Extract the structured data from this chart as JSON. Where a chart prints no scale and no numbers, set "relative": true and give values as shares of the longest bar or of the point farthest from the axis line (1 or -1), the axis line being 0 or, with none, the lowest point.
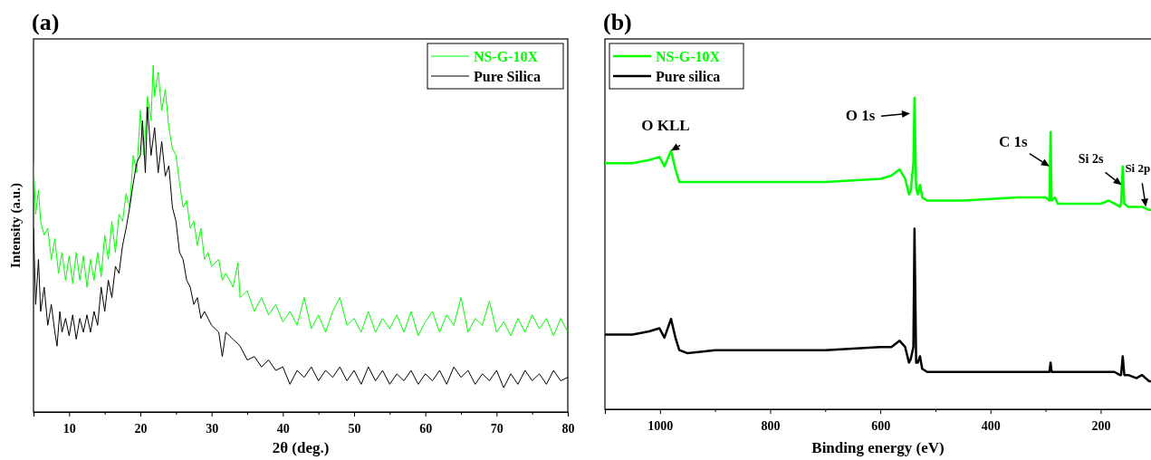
{
  "chart_data": [
    {
      "type": "line",
      "title": "(a)",
      "xlabel": "2θ (deg.)",
      "ylabel": "Intensity (a.u.)",
      "relative": true,
      "xlim": [
        5,
        80
      ],
      "xticks": [
        {
          "value": 5,
          "label": null
        },
        10,
        {
          "value": 15,
          "label": null
        },
        20,
        {
          "value": 25,
          "label": null
        },
        30,
        {
          "value": 35,
          "label": null
        },
        40,
        {
          "value": 45,
          "label": null
        },
        50,
        {
          "value": 55,
          "label": null
        },
        60,
        {
          "value": 65,
          "label": null
        },
        70,
        {
          "value": 75,
          "label": null
        },
        80
      ],
      "legend": "top right",
      "grid": false,
      "series": [
        {
          "name": "NS-G-10X",
          "color": "#00ff00",
          "x": [
            5,
            5.3,
            5.7,
            6,
            6.5,
            7,
            7.5,
            8,
            8.5,
            9,
            9.5,
            10,
            10.5,
            11,
            11.5,
            12,
            12.5,
            13,
            13.5,
            14,
            14.5,
            15,
            15.5,
            16,
            16.5,
            17,
            17.5,
            18,
            18.5,
            19,
            19.5,
            20,
            20.5,
            21,
            21.5,
            21.8,
            22,
            22.5,
            23,
            23.5,
            24,
            24.5,
            25,
            25.5,
            26,
            26.5,
            27,
            27.5,
            28,
            28.5,
            29,
            29.5,
            30,
            31,
            31.5,
            32,
            33,
            33.7,
            34,
            35,
            36,
            37,
            38,
            39,
            40,
            41,
            42,
            43,
            44,
            45,
            46,
            47,
            48,
            49,
            50,
            51,
            52,
            53,
            54,
            55,
            56,
            57,
            58,
            59,
            60,
            61,
            62,
            63,
            64,
            65,
            66,
            67,
            68,
            69,
            70,
            71,
            72,
            73,
            74,
            75,
            76,
            77,
            78,
            79,
            80
          ],
          "values": [
            0.72,
            0.57,
            0.64,
            0.55,
            0.51,
            0.53,
            0.44,
            0.5,
            0.4,
            0.46,
            0.38,
            0.45,
            0.37,
            0.46,
            0.38,
            0.45,
            0.36,
            0.44,
            0.38,
            0.46,
            0.39,
            0.51,
            0.44,
            0.55,
            0.46,
            0.57,
            0.55,
            0.63,
            0.59,
            0.74,
            0.69,
            0.87,
            0.74,
            0.91,
            0.84,
            1.0,
            0.91,
            0.98,
            0.87,
            0.93,
            0.82,
            0.76,
            0.74,
            0.66,
            0.59,
            0.61,
            0.53,
            0.55,
            0.48,
            0.53,
            0.44,
            0.46,
            0.42,
            0.44,
            0.38,
            0.4,
            0.36,
            0.43,
            0.33,
            0.35,
            0.29,
            0.33,
            0.28,
            0.31,
            0.26,
            0.29,
            0.25,
            0.33,
            0.24,
            0.28,
            0.23,
            0.29,
            0.33,
            0.25,
            0.27,
            0.23,
            0.29,
            0.23,
            0.27,
            0.24,
            0.28,
            0.23,
            0.29,
            0.22,
            0.26,
            0.29,
            0.23,
            0.28,
            0.25,
            0.33,
            0.23,
            0.27,
            0.25,
            0.32,
            0.23,
            0.26,
            0.22,
            0.27,
            0.23,
            0.28,
            0.24,
            0.27,
            0.22,
            0.27,
            0.23
          ]
        },
        {
          "name": "Pure Silica",
          "color": "#000000",
          "x": [
            5,
            5.3,
            5.7,
            6,
            6.5,
            7,
            7.5,
            8,
            8.3,
            8.7,
            9,
            9.5,
            10,
            10.5,
            11,
            11.5,
            12,
            12.5,
            13,
            13.5,
            14,
            14.5,
            15,
            15.5,
            16,
            16.5,
            17,
            17.5,
            18,
            18.5,
            19,
            19.5,
            20,
            20.3,
            20.7,
            21,
            21.5,
            22,
            22.5,
            23,
            23.5,
            24,
            24.5,
            25,
            25.5,
            26,
            26.5,
            27,
            27.5,
            28,
            28.5,
            29,
            30,
            31,
            31.5,
            32,
            33,
            34,
            35,
            36,
            37,
            38,
            39,
            40,
            41,
            42,
            43,
            44,
            45,
            46,
            47,
            48,
            49,
            50,
            51,
            52,
            53,
            54,
            55,
            56,
            57,
            58,
            59,
            60,
            61,
            62,
            63,
            64,
            65,
            66,
            67,
            68,
            69,
            70,
            71,
            72,
            73,
            74,
            75,
            76,
            77,
            78,
            79,
            80
          ],
          "values": [
            0.53,
            0.31,
            0.44,
            0.29,
            0.36,
            0.25,
            0.31,
            0.23,
            0.19,
            0.29,
            0.23,
            0.27,
            0.22,
            0.28,
            0.21,
            0.27,
            0.23,
            0.28,
            0.23,
            0.29,
            0.25,
            0.36,
            0.29,
            0.38,
            0.33,
            0.42,
            0.4,
            0.48,
            0.53,
            0.59,
            0.66,
            0.72,
            0.74,
            0.84,
            0.69,
            0.88,
            0.74,
            0.82,
            0.69,
            0.78,
            0.68,
            0.71,
            0.59,
            0.55,
            0.46,
            0.44,
            0.38,
            0.36,
            0.31,
            0.33,
            0.27,
            0.29,
            0.25,
            0.23,
            0.16,
            0.23,
            0.21,
            0.19,
            0.15,
            0.16,
            0.13,
            0.15,
            0.12,
            0.13,
            0.08,
            0.12,
            0.1,
            0.13,
            0.09,
            0.12,
            0.1,
            0.13,
            0.09,
            0.12,
            0.08,
            0.13,
            0.09,
            0.12,
            0.08,
            0.11,
            0.09,
            0.12,
            0.08,
            0.11,
            0.09,
            0.12,
            0.08,
            0.13,
            0.1,
            0.12,
            0.08,
            0.11,
            0.09,
            0.12,
            0.07,
            0.11,
            0.08,
            0.12,
            0.09,
            0.11,
            0.08,
            0.12,
            0.09,
            0.1
          ]
        }
      ]
    },
    {
      "type": "line",
      "title": "(b)",
      "xlabel": "Binding energy (eV)",
      "relative": true,
      "xlim": [
        1100,
        107
      ],
      "xticks": [
        {
          "value": 1100,
          "label": null
        },
        1000,
        {
          "value": 900,
          "label": null
        },
        800,
        {
          "value": 700,
          "label": null
        },
        600,
        {
          "value": 500,
          "label": null
        },
        400,
        {
          "value": 300,
          "label": null
        },
        200
      ],
      "legend": "top left",
      "grid": false,
      "annotations": [
        {
          "text": "O KLL",
          "x": 980,
          "y": 0.83
        },
        {
          "text": "O 1s",
          "x": 546,
          "y": 0.95
        },
        {
          "text": "C 1s",
          "x": 293,
          "y": 0.78
        },
        {
          "text": "Si 2s",
          "x": 162,
          "y": 0.72
        },
        {
          "text": "Si 2p",
          "x": 118,
          "y": 0.65
        }
      ],
      "series": [
        {
          "name": "NS-G-10X",
          "color": "#00ff00",
          "x": [
            1100,
            1050,
            1020,
            1001,
            992,
            980,
            972,
            965,
            950,
            900,
            800,
            700,
            600,
            580,
            565,
            555,
            548,
            545,
            540,
            538,
            535,
            532,
            528,
            524,
            515,
            450,
            350,
            310,
            300,
            293,
            291,
            289,
            283,
            278,
            250,
            200,
            185,
            175,
            165,
            163,
            160,
            157,
            150,
            135,
            125,
            112,
            107
          ],
          "values": [
            0.79,
            0.79,
            0.8,
            0.81,
            0.78,
            0.83,
            0.77,
            0.73,
            0.73,
            0.73,
            0.73,
            0.73,
            0.74,
            0.75,
            0.77,
            0.74,
            0.69,
            0.7,
            0.79,
            1.0,
            0.71,
            0.69,
            0.72,
            0.68,
            0.67,
            0.67,
            0.68,
            0.68,
            0.68,
            0.67,
            0.89,
            0.67,
            0.68,
            0.66,
            0.66,
            0.66,
            0.67,
            0.66,
            0.65,
            0.66,
            0.78,
            0.66,
            0.65,
            0.65,
            0.65,
            0.64,
            0.64
          ]
        },
        {
          "name": "Pure silica",
          "color": "#000000",
          "x": [
            1100,
            1050,
            1020,
            1001,
            992,
            980,
            972,
            965,
            950,
            900,
            800,
            700,
            600,
            580,
            565,
            555,
            548,
            545,
            540,
            538,
            535,
            532,
            528,
            524,
            515,
            450,
            350,
            310,
            300,
            293,
            291,
            289,
            283,
            278,
            250,
            200,
            185,
            175,
            165,
            163,
            160,
            157,
            150,
            135,
            125,
            112,
            107
          ],
          "values": [
            0.24,
            0.24,
            0.25,
            0.26,
            0.23,
            0.29,
            0.23,
            0.19,
            0.18,
            0.19,
            0.19,
            0.19,
            0.2,
            0.2,
            0.22,
            0.2,
            0.15,
            0.16,
            0.2,
            0.58,
            0.15,
            0.15,
            0.17,
            0.13,
            0.12,
            0.12,
            0.12,
            0.12,
            0.12,
            0.12,
            0.15,
            0.12,
            0.12,
            0.12,
            0.12,
            0.12,
            0.12,
            0.12,
            0.11,
            0.11,
            0.17,
            0.11,
            0.11,
            0.1,
            0.11,
            0.09,
            0.09
          ]
        }
      ]
    }
  ]
}
